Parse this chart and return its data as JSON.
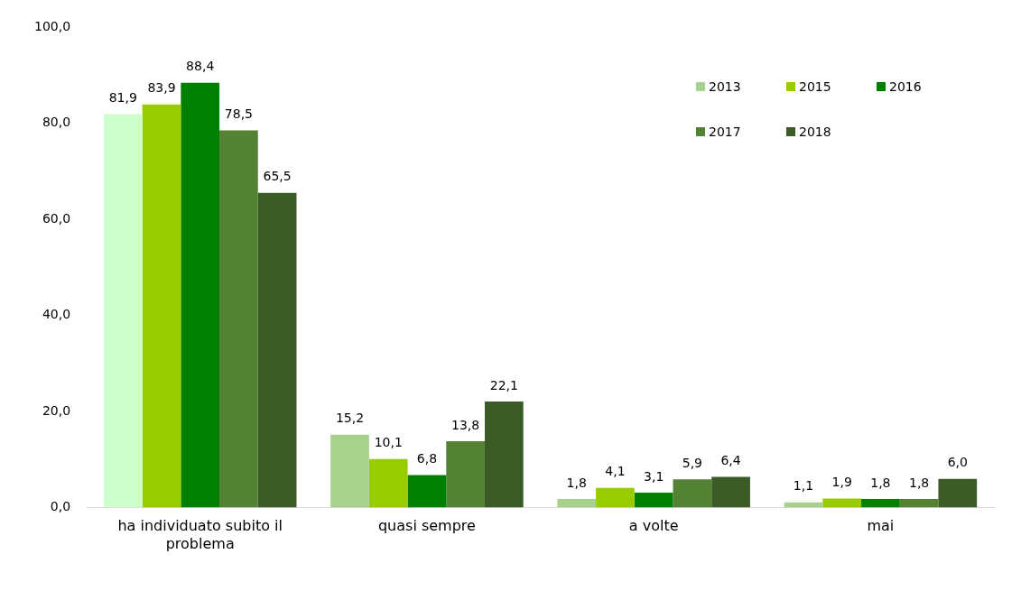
{
  "chart_data": {
    "type": "bar",
    "categories": [
      "ha individuato subito il problema",
      "quasi sempre",
      "a volte",
      "mai"
    ],
    "series": [
      {
        "name": "2013",
        "color": "#a9d18e",
        "colors": [
          "#ccffcc",
          "#a9d18e",
          "#a9d18e",
          "#a9d18e"
        ],
        "values": [
          81.9,
          15.2,
          1.8,
          1.1
        ],
        "value_labels": [
          "81,9",
          "15,2",
          "1,8",
          "1,1"
        ]
      },
      {
        "name": "2015",
        "color": "#99cc00",
        "values": [
          83.9,
          10.1,
          4.1,
          1.9
        ],
        "value_labels": [
          "83,9",
          "10,1",
          "4,1",
          "1,9"
        ]
      },
      {
        "name": "2016",
        "color": "#008000",
        "values": [
          88.4,
          6.8,
          3.1,
          1.8
        ],
        "value_labels": [
          "88,4",
          "6,8",
          "3,1",
          "1,8"
        ]
      },
      {
        "name": "2017",
        "color": "#548235",
        "values": [
          78.5,
          13.8,
          5.9,
          1.8
        ],
        "value_labels": [
          "78,5",
          "13,8",
          "5,9",
          "1,8"
        ]
      },
      {
        "name": "2018",
        "color": "#3a5a26",
        "values": [
          65.5,
          22.1,
          6.4,
          6.0
        ],
        "value_labels": [
          "65,5",
          "22,1",
          "6,4",
          "6,0"
        ]
      }
    ],
    "ylim": [
      0,
      100
    ],
    "yticks": [
      {
        "value": 0,
        "label": "0,0"
      },
      {
        "value": 20,
        "label": "20,0"
      },
      {
        "value": 40,
        "label": "40,0"
      },
      {
        "value": 60,
        "label": "60,0"
      },
      {
        "value": 80,
        "label": "80,0"
      },
      {
        "value": 100,
        "label": "100,0"
      }
    ],
    "grid": false,
    "legend": "top right"
  }
}
